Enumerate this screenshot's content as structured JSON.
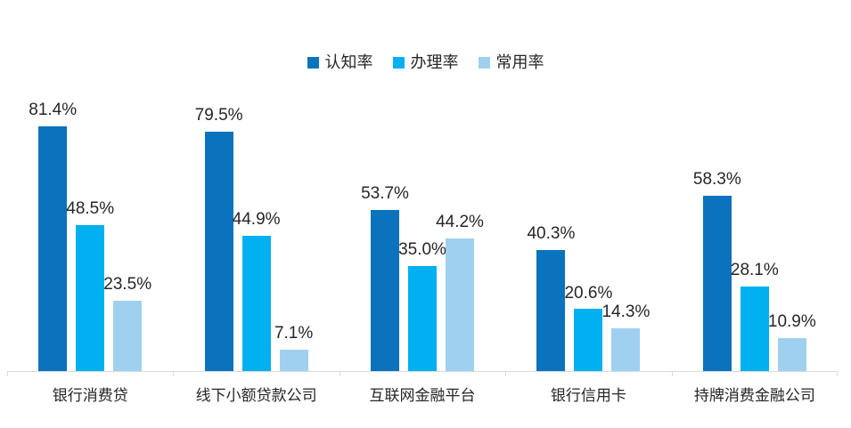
{
  "chart_data": {
    "type": "bar",
    "title": "",
    "categories": [
      "银行消费贷",
      "线下小额贷款公司",
      "互联网金融平台",
      "银行信用卡",
      "持牌消费金融公司"
    ],
    "series": [
      {
        "name": "认知率",
        "color": "#0b72be",
        "values": [
          81.4,
          79.5,
          53.7,
          40.3,
          58.3
        ]
      },
      {
        "name": "办理率",
        "color": "#00b0f0",
        "values": [
          48.5,
          44.9,
          35.0,
          20.6,
          28.1
        ]
      },
      {
        "name": "常用率",
        "color": "#9fd0f0",
        "values": [
          23.5,
          7.1,
          44.2,
          14.3,
          10.9
        ]
      }
    ],
    "value_suffix": "%",
    "value_decimals": 1,
    "ylim": [
      0,
      100
    ],
    "grid": false,
    "legend_position": "top",
    "data_labels": true,
    "axis_line_color": "#d9d9d9",
    "label_color": "#262626",
    "background_color": "#ffffff"
  }
}
